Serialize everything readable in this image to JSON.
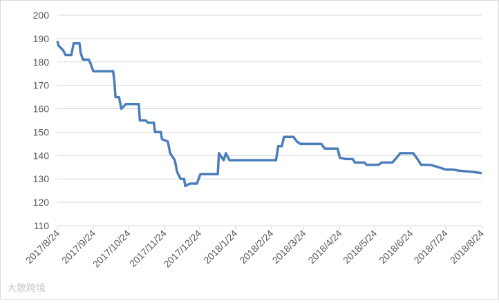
{
  "chart_data": {
    "type": "line",
    "watermark": "大数跨境",
    "x": [
      "2017/8/24",
      "2017/8/25",
      "2017/8/27",
      "2017/8/29",
      "2017/8/31",
      "2017/9/5",
      "2017/9/7",
      "2017/9/12",
      "2017/9/13",
      "2017/9/15",
      "2017/9/20",
      "2017/9/21",
      "2017/9/24",
      "2017/10/11",
      "2017/10/12",
      "2017/10/13",
      "2017/10/16",
      "2017/10/18",
      "2017/10/22",
      "2017/11/2",
      "2017/11/3",
      "2017/11/8",
      "2017/11/10",
      "2017/11/15",
      "2017/11/16",
      "2017/11/21",
      "2017/11/22",
      "2017/11/27",
      "2017/11/29",
      "2017/12/3",
      "2017/12/5",
      "2017/12/8",
      "2017/12/11",
      "2017/12/12",
      "2017/12/16",
      "2017/12/22",
      "2017/12/25",
      "2018/1/9",
      "2018/1/10",
      "2018/1/14",
      "2018/1/16",
      "2018/1/19",
      "2018/2/28",
      "2018/3/2",
      "2018/3/5",
      "2018/3/7",
      "2018/3/15",
      "2018/3/18",
      "2018/3/21",
      "2018/4/8",
      "2018/4/11",
      "2018/4/22",
      "2018/4/24",
      "2018/4/29",
      "2018/5/5",
      "2018/5/7",
      "2018/5/15",
      "2018/5/17",
      "2018/5/27",
      "2018/5/30",
      "2018/6/8",
      "2018/6/10",
      "2018/6/15",
      "2018/6/26",
      "2018/6/29",
      "2018/7/3",
      "2018/7/11",
      "2018/7/18",
      "2018/7/24",
      "2018/7/30",
      "2018/8/5",
      "2018/8/17",
      "2018/8/24"
    ],
    "series": [
      {
        "color": "#4a7ebb",
        "values": [
          189,
          187,
          186,
          185,
          183,
          183,
          188,
          188,
          184,
          181,
          181,
          180,
          176,
          176,
          172,
          165,
          165,
          160,
          162,
          162,
          155,
          155,
          154,
          154,
          150,
          150,
          147,
          146,
          141,
          138,
          133,
          130,
          130,
          127,
          128,
          128,
          132,
          132,
          141,
          138,
          141,
          138,
          138,
          144,
          144,
          148,
          148,
          146,
          145,
          145,
          143,
          143,
          139,
          138.5,
          138.5,
          137,
          137,
          136,
          136,
          137,
          137,
          138,
          141,
          141,
          139,
          136,
          136,
          135,
          134,
          134,
          133.5,
          133,
          132.5
        ]
      }
    ],
    "xlim": [
      "2017/8/24",
      "2018/8/24"
    ],
    "xticks": [
      "2017/8/24",
      "2017/9/24",
      "2017/10/24",
      "2017/11/24",
      "2017/12/24",
      "2018/1/24",
      "2018/2/24",
      "2018/3/24",
      "2018/4/24",
      "2018/5/24",
      "2018/6/24",
      "2018/7/24",
      "2018/8/24"
    ],
    "ylim": [
      110,
      200
    ],
    "yticks": [
      110,
      120,
      130,
      140,
      150,
      160,
      170,
      180,
      190,
      200
    ],
    "grid": true
  }
}
